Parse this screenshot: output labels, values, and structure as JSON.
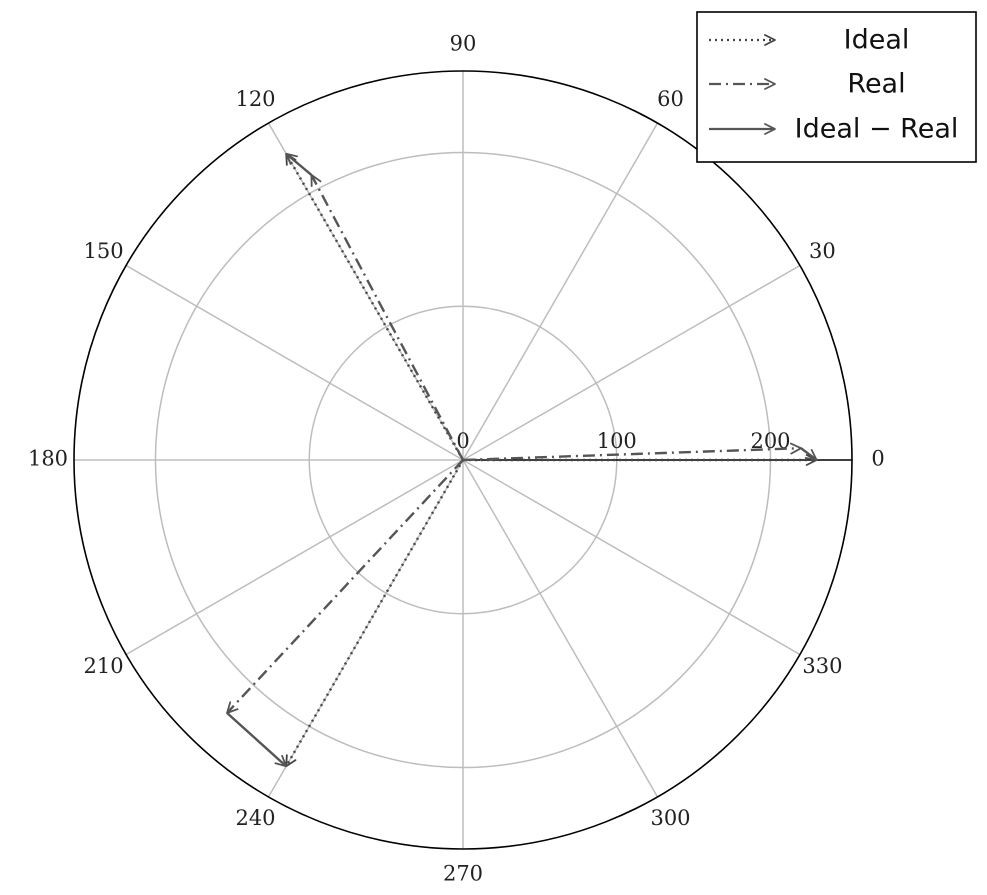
{
  "chart_data": {
    "type": "polar",
    "angle_unit": "degrees",
    "r_lim": [
      0,
      253
    ],
    "grid": true,
    "angular_ticks": [
      "0",
      "30",
      "60",
      "90",
      "120",
      "150",
      "180",
      "210",
      "240",
      "270",
      "300",
      "330"
    ],
    "angular_tick_values": [
      0,
      30,
      60,
      90,
      120,
      150,
      180,
      210,
      240,
      270,
      300,
      330
    ],
    "radial_ticks": [
      "0",
      "100",
      "200"
    ],
    "radial_tick_values": [
      0,
      100,
      200
    ],
    "legend_position": "top-right",
    "series": [
      {
        "name": "Ideal",
        "style": "dotted",
        "color": "#444444",
        "vectors": [
          {
            "angle": 0,
            "r": 230
          },
          {
            "angle": 120,
            "r": 230
          },
          {
            "angle": 240,
            "r": 230
          }
        ]
      },
      {
        "name": "Real",
        "style": "dashdot",
        "color": "#555555",
        "vectors": [
          {
            "angle": 2,
            "r": 220
          },
          {
            "angle": 118,
            "r": 210
          },
          {
            "angle": 227,
            "r": 225
          }
        ]
      },
      {
        "name": "Ideal − Real",
        "style": "solid",
        "color": "#555555",
        "vectors": [
          {
            "from_angle": 2,
            "from_r": 220,
            "to_angle": 0,
            "to_r": 230
          },
          {
            "from_angle": 118,
            "from_r": 210,
            "to_angle": 120,
            "to_r": 230
          },
          {
            "from_angle": 227,
            "from_r": 225,
            "to_angle": 240,
            "to_r": 230
          }
        ]
      }
    ]
  }
}
